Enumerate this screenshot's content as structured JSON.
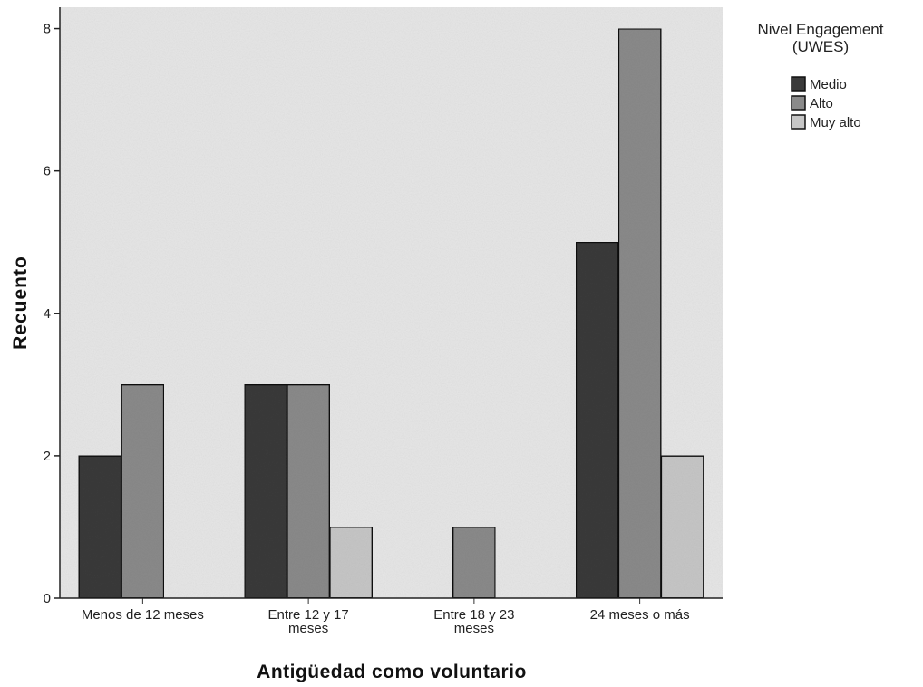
{
  "chart_data": {
    "type": "bar",
    "xlabel": "Antigüedad como voluntario",
    "ylabel": "Recuento",
    "ylim": [
      0,
      8.3
    ],
    "yticks": [
      0,
      2,
      4,
      6,
      8
    ],
    "grid": false,
    "legend_position": "top-right",
    "legend_title": [
      "Nivel Engagement",
      "(UWES)"
    ],
    "categories": [
      [
        "Menos de 12 meses"
      ],
      [
        "Entre 12 y 17",
        "meses"
      ],
      [
        "Entre 18 y 23",
        "meses"
      ],
      [
        "24 meses o más"
      ]
    ],
    "series": [
      {
        "name": "Medio",
        "color": "#3a3a3a",
        "values": [
          2,
          3,
          0,
          5
        ]
      },
      {
        "name": "Alto",
        "color": "#8a8a8a",
        "values": [
          3,
          3,
          1,
          8
        ]
      },
      {
        "name": "Muy alto",
        "color": "#c6c6c6",
        "values": [
          0,
          1,
          0,
          2
        ]
      }
    ],
    "plot_background": "#e6e6e6"
  }
}
